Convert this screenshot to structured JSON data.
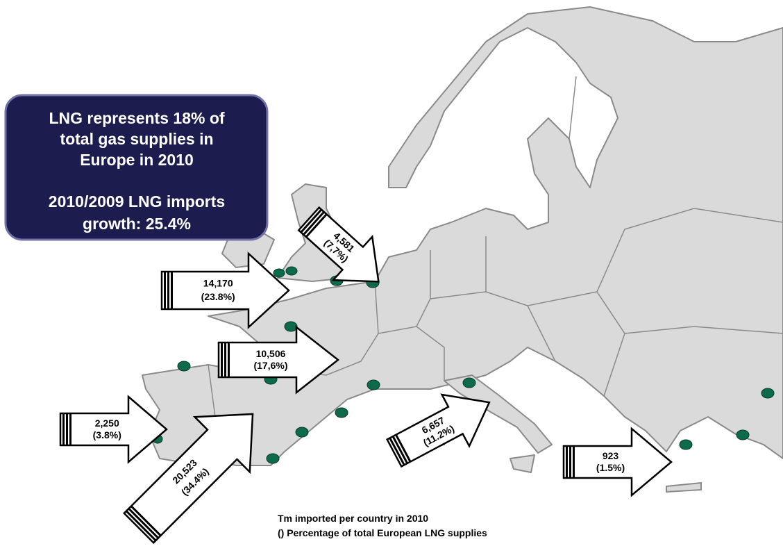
{
  "info_box": {
    "lines": [
      "LNG represents 18% of",
      "total gas supplies in",
      "Europe in 2010",
      "2010/2009 LNG imports",
      "growth: 25.4%"
    ]
  },
  "arrows": [
    {
      "value": "14,170",
      "share": "(23.8%)"
    },
    {
      "value": "10,506",
      "share": "(17,6%)"
    },
    {
      "value": "2,250",
      "share": "(3.8%)"
    },
    {
      "value": "20,523",
      "share": "(34.4%)"
    },
    {
      "value": "4,581",
      "share": "(7,7%)"
    },
    {
      "value": "6,657",
      "share": "(11.2%)"
    },
    {
      "value": "923",
      "share": "(1.5%)"
    }
  ],
  "footnote": [
    "Tm imported per country in 2010",
    "() Percentage of total European LNG supplies"
  ]
}
